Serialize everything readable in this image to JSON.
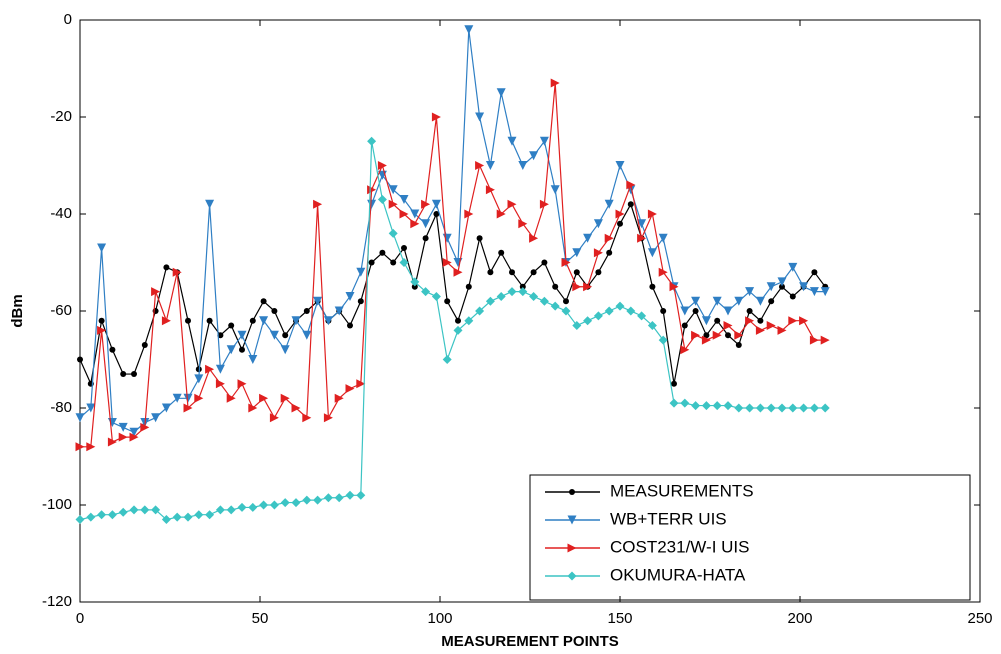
{
  "chart_data": {
    "type": "line",
    "x_label": "MEASUREMENT POINTS",
    "y_label": "dBm",
    "xlim": [
      0,
      250
    ],
    "xticks": [
      0,
      50,
      100,
      150,
      200,
      250
    ],
    "ylim": [
      -120,
      0
    ],
    "yticks": [
      -120,
      -100,
      -80,
      -60,
      -40,
      -20,
      0
    ],
    "grid": false,
    "legend": "lower right",
    "x": [
      0,
      3,
      6,
      9,
      12,
      15,
      18,
      21,
      24,
      27,
      30,
      33,
      36,
      39,
      42,
      45,
      48,
      51,
      54,
      57,
      60,
      63,
      66,
      69,
      72,
      75,
      78,
      81,
      84,
      87,
      90,
      93,
      96,
      99,
      102,
      105,
      108,
      111,
      114,
      117,
      120,
      123,
      126,
      129,
      132,
      135,
      138,
      141,
      144,
      147,
      150,
      153,
      156,
      159,
      162,
      165,
      168,
      171,
      174,
      177,
      180,
      183,
      186,
      189,
      192,
      195,
      198,
      201,
      204,
      207
    ],
    "series": [
      {
        "name": "MEASUREMENTS",
        "color": "#000000",
        "marker": "circle",
        "values": [
          -70,
          -75,
          -62,
          -68,
          -73,
          -73,
          -67,
          -60,
          -51,
          -52,
          -62,
          -72,
          -62,
          -65,
          -63,
          -68,
          -62,
          -58,
          -60,
          -65,
          -62,
          -60,
          -58,
          -62,
          -60,
          -63,
          -58,
          -50,
          -48,
          -50,
          -47,
          -55,
          -45,
          -40,
          -58,
          -62,
          -55,
          -45,
          -52,
          -48,
          -52,
          -55,
          -52,
          -50,
          -55,
          -58,
          -52,
          -55,
          -52,
          -48,
          -42,
          -38,
          -45,
          -55,
          -60,
          -75,
          -63,
          -60,
          -65,
          -62,
          -65,
          -67,
          -60,
          -62,
          -58,
          -55,
          -57,
          -55,
          -52,
          -55
        ]
      },
      {
        "name": "WB+TERR UIS",
        "color": "#2f7fc4",
        "marker": "triangle-down",
        "values": [
          -82,
          -80,
          -47,
          -83,
          -84,
          -85,
          -83,
          -82,
          -80,
          -78,
          -78,
          -74,
          -38,
          -72,
          -68,
          -65,
          -70,
          -62,
          -65,
          -68,
          -62,
          -65,
          -58,
          -62,
          -60,
          -57,
          -52,
          -38,
          -32,
          -35,
          -37,
          -40,
          -42,
          -38,
          -45,
          -50,
          -2,
          -20,
          -30,
          -15,
          -25,
          -30,
          -28,
          -25,
          -35,
          -50,
          -48,
          -45,
          -42,
          -38,
          -30,
          -35,
          -42,
          -48,
          -45,
          -55,
          -60,
          -58,
          -62,
          -58,
          -60,
          -58,
          -56,
          -58,
          -55,
          -54,
          -51,
          -55,
          -56,
          -56
        ]
      },
      {
        "name": "COST231/W-I UIS",
        "color": "#e02020",
        "marker": "triangle-right",
        "values": [
          -88,
          -88,
          -64,
          -87,
          -86,
          -86,
          -84,
          -56,
          -62,
          -52,
          -80,
          -78,
          -72,
          -75,
          -78,
          -75,
          -80,
          -78,
          -82,
          -78,
          -80,
          -82,
          -38,
          -82,
          -78,
          -76,
          -75,
          -35,
          -30,
          -38,
          -40,
          -42,
          -38,
          -20,
          -50,
          -52,
          -40,
          -30,
          -35,
          -40,
          -38,
          -42,
          -45,
          -38,
          -13,
          -50,
          -55,
          -55,
          -48,
          -45,
          -40,
          -34,
          -45,
          -40,
          -52,
          -55,
          -68,
          -65,
          -66,
          -65,
          -63,
          -65,
          -62,
          -64,
          -63,
          -64,
          -62,
          -62,
          -66,
          -66
        ]
      },
      {
        "name": "OKUMURA-HATA",
        "color": "#3cc4c4",
        "marker": "diamond",
        "values": [
          -103,
          -102.5,
          -102,
          -102,
          -101.5,
          -101,
          -101,
          -101,
          -103,
          -102.5,
          -102.5,
          -102,
          -102,
          -101,
          -101,
          -100.5,
          -100.5,
          -100,
          -100,
          -99.5,
          -99.5,
          -99,
          -99,
          -98.5,
          -98.5,
          -98,
          -98,
          -25,
          -37,
          -44,
          -50,
          -54,
          -56,
          -57,
          -70,
          -64,
          -62,
          -60,
          -58,
          -57,
          -56,
          -56,
          -57,
          -58,
          -59,
          -60,
          -63,
          -62,
          -61,
          -60,
          -59,
          -60,
          -61,
          -63,
          -66,
          -79,
          -79,
          -79.5,
          -79.5,
          -79.5,
          -79.5,
          -80,
          -80,
          -80,
          -80,
          -80,
          -80,
          -80,
          -80,
          -80
        ]
      }
    ]
  }
}
